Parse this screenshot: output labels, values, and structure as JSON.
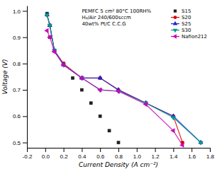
{
  "chart_data": {
    "type": "line",
    "xlabel": "Current Density (A cm⁻²)",
    "ylabel": "Voltage (V)",
    "annotation": "PEMFC 5 cm² 80°C 100RH%\nH₂/Air 240/600sccm\n40wt% Pt/C C.C.G",
    "xlim": [
      -0.2,
      1.8
    ],
    "ylim": [
      0.48,
      1.02
    ],
    "xticks": [
      -0.2,
      {
        "value": 0.0,
        "label": "0.0"
      },
      0.2,
      0.4,
      0.6,
      0.8,
      {
        "value": 1.0,
        "label": "1.0"
      },
      1.2,
      1.4,
      1.6,
      1.8
    ],
    "yticks": [
      0.5,
      0.6,
      0.7,
      0.8,
      0.9,
      {
        "value": 1.0,
        "label": "1.0"
      }
    ],
    "legend": "upper right",
    "series": [
      {
        "name": "S15",
        "type": "scatter",
        "color": "#222222",
        "marker": "square",
        "line_style": "none",
        "x": [
          0.02,
          0.05,
          0.1,
          0.2,
          0.3,
          0.4,
          0.5,
          0.6,
          0.7,
          0.8
        ],
        "values": [
          0.99,
          0.9,
          0.85,
          0.8,
          0.745,
          0.7,
          0.65,
          0.6,
          0.545,
          0.5
        ]
      },
      {
        "name": "S20",
        "type": "line",
        "color": "#dd0000",
        "marker": "circle",
        "line_style": "solid",
        "x": [
          0.02,
          0.05,
          0.1,
          0.2,
          0.4,
          0.6,
          0.8,
          1.1,
          1.4,
          1.5
        ],
        "values": [
          0.985,
          0.945,
          0.85,
          0.8,
          0.745,
          0.745,
          0.7,
          0.65,
          0.6,
          0.5
        ]
      },
      {
        "name": "S25",
        "type": "line",
        "color": "#2222cc",
        "marker": "triangle-up",
        "line_style": "solid",
        "x": [
          0.02,
          0.05,
          0.1,
          0.2,
          0.4,
          0.6,
          0.8,
          1.1,
          1.4,
          1.7
        ],
        "values": [
          0.985,
          0.945,
          0.85,
          0.795,
          0.745,
          0.745,
          0.7,
          0.65,
          0.6,
          0.5
        ]
      },
      {
        "name": "S30",
        "type": "line",
        "color": "#009988",
        "marker": "triangle-down",
        "line_style": "solid",
        "x": [
          0.02,
          0.05,
          0.1,
          0.2,
          0.4,
          0.6,
          0.8,
          1.1,
          1.4,
          1.7
        ],
        "values": [
          0.985,
          0.945,
          0.85,
          0.795,
          0.745,
          0.7,
          0.695,
          0.65,
          0.595,
          0.5
        ]
      },
      {
        "name": "Nafion212",
        "type": "line",
        "color": "#cc00bb",
        "marker": "triangle-left",
        "line_style": "solid",
        "x": [
          0.02,
          0.05,
          0.1,
          0.2,
          0.4,
          0.6,
          0.8,
          1.1,
          1.4,
          1.5
        ],
        "values": [
          0.925,
          0.9,
          0.845,
          0.795,
          0.745,
          0.7,
          0.695,
          0.645,
          0.545,
          0.49
        ]
      }
    ]
  }
}
